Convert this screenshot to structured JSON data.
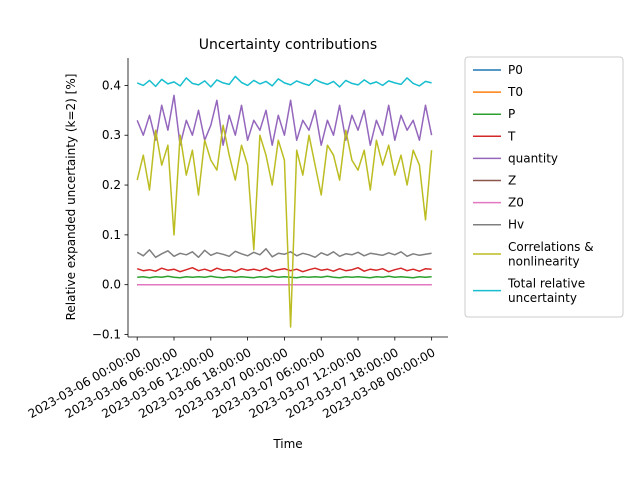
{
  "chart_data": {
    "type": "line",
    "title": "Uncertainty contributions",
    "xlabel": "Time",
    "ylabel": "Relative expanded uncertainty (k=2) [%]",
    "x_range": [
      "2023-03-05 22:30:00",
      "2023-03-08 02:40:00"
    ],
    "ylim": [
      -0.105,
      0.455
    ],
    "yticks": [
      -0.1,
      0.0,
      0.1,
      0.2,
      0.3,
      0.4
    ],
    "ytick_labels": [
      "−0.1",
      "0.0",
      "0.1",
      "0.2",
      "0.3",
      "0.4"
    ],
    "xticks": [
      "2023-03-06 00:00:00",
      "2023-03-06 06:00:00",
      "2023-03-06 12:00:00",
      "2023-03-06 18:00:00",
      "2023-03-07 00:00:00",
      "2023-03-07 06:00:00",
      "2023-03-07 12:00:00",
      "2023-03-07 18:00:00",
      "2023-03-08 00:00:00"
    ],
    "grid": false,
    "legend_placement": "outside upper right",
    "series": [
      {
        "name": "P0",
        "color": "#1f77b4",
        "values": [
          0.0,
          0.0,
          0.0,
          0.0,
          0.0,
          0.0,
          0.0,
          0.0,
          0.0,
          0.0,
          0.0,
          0.0,
          0.0,
          0.0,
          0.0,
          0.0,
          0.0,
          0.0,
          0.0,
          0.0,
          0.0,
          0.0,
          0.0,
          0.0,
          0.0,
          0.0,
          0.0,
          0.0,
          0.0,
          0.0,
          0.0,
          0.0,
          0.0,
          0.0,
          0.0,
          0.0,
          0.0,
          0.0,
          0.0,
          0.0,
          0.0,
          0.0,
          0.0,
          0.0,
          0.0,
          0.0,
          0.0,
          0.0,
          0.0
        ]
      },
      {
        "name": "T0",
        "color": "#ff7f0e",
        "values": [
          0.0,
          0.0,
          0.0,
          0.0,
          0.0,
          0.0,
          0.0,
          0.0,
          0.0,
          0.0,
          0.0,
          0.0,
          0.0,
          0.0,
          0.0,
          0.0,
          0.0,
          0.0,
          0.0,
          0.0,
          0.0,
          0.0,
          0.0,
          0.0,
          0.0,
          0.0,
          0.0,
          0.0,
          0.0,
          0.0,
          0.0,
          0.0,
          0.0,
          0.0,
          0.0,
          0.0,
          0.0,
          0.0,
          0.0,
          0.0,
          0.0,
          0.0,
          0.0,
          0.0,
          0.0,
          0.0,
          0.0,
          0.0,
          0.0
        ]
      },
      {
        "name": "P",
        "color": "#2ca02c",
        "values": [
          0.015,
          0.016,
          0.014,
          0.016,
          0.015,
          0.017,
          0.015,
          0.014,
          0.016,
          0.015,
          0.016,
          0.015,
          0.017,
          0.015,
          0.014,
          0.016,
          0.015,
          0.016,
          0.015,
          0.014,
          0.016,
          0.015,
          0.017,
          0.015,
          0.016,
          0.015,
          0.014,
          0.016,
          0.015,
          0.016,
          0.015,
          0.017,
          0.015,
          0.014,
          0.016,
          0.015,
          0.016,
          0.015,
          0.014,
          0.016,
          0.015,
          0.017,
          0.015,
          0.016,
          0.015,
          0.014,
          0.016,
          0.015,
          0.016
        ]
      },
      {
        "name": "T",
        "color": "#d62728",
        "values": [
          0.032,
          0.028,
          0.03,
          0.027,
          0.033,
          0.029,
          0.031,
          0.026,
          0.03,
          0.034,
          0.028,
          0.031,
          0.027,
          0.033,
          0.029,
          0.03,
          0.026,
          0.032,
          0.029,
          0.031,
          0.028,
          0.033,
          0.027,
          0.03,
          0.032,
          0.028,
          0.031,
          0.026,
          0.03,
          0.033,
          0.029,
          0.031,
          0.027,
          0.032,
          0.028,
          0.03,
          0.034,
          0.027,
          0.031,
          0.029,
          0.032,
          0.026,
          0.03,
          0.033,
          0.028,
          0.031,
          0.027,
          0.032,
          0.031
        ]
      },
      {
        "name": "quantity",
        "color": "#9467bd",
        "values": [
          0.33,
          0.3,
          0.34,
          0.29,
          0.36,
          0.31,
          0.38,
          0.28,
          0.33,
          0.3,
          0.35,
          0.29,
          0.32,
          0.37,
          0.28,
          0.34,
          0.3,
          0.36,
          0.29,
          0.33,
          0.31,
          0.35,
          0.28,
          0.34,
          0.3,
          0.37,
          0.29,
          0.33,
          0.31,
          0.35,
          0.28,
          0.33,
          0.3,
          0.36,
          0.29,
          0.34,
          0.31,
          0.35,
          0.28,
          0.33,
          0.3,
          0.36,
          0.29,
          0.34,
          0.31,
          0.33,
          0.29,
          0.36,
          0.3
        ]
      },
      {
        "name": "Z",
        "color": "#8c564b",
        "values": [
          0.0,
          0.0,
          0.0,
          0.0,
          0.0,
          0.0,
          0.0,
          0.0,
          0.0,
          0.0,
          0.0,
          0.0,
          0.0,
          0.0,
          0.0,
          0.0,
          0.0,
          0.0,
          0.0,
          0.0,
          0.0,
          0.0,
          0.0,
          0.0,
          0.0,
          0.0,
          0.0,
          0.0,
          0.0,
          0.0,
          0.0,
          0.0,
          0.0,
          0.0,
          0.0,
          0.0,
          0.0,
          0.0,
          0.0,
          0.0,
          0.0,
          0.0,
          0.0,
          0.0,
          0.0,
          0.0,
          0.0,
          0.0,
          0.0
        ]
      },
      {
        "name": "Z0",
        "color": "#e377c2",
        "values": [
          0.0,
          0.0,
          0.0,
          0.0,
          0.0,
          0.0,
          0.0,
          0.0,
          0.0,
          0.0,
          0.0,
          0.0,
          0.0,
          0.0,
          0.0,
          0.0,
          0.0,
          0.0,
          0.0,
          0.0,
          0.0,
          0.0,
          0.0,
          0.0,
          0.0,
          0.0,
          0.0,
          0.0,
          0.0,
          0.0,
          0.0,
          0.0,
          0.0,
          0.0,
          0.0,
          0.0,
          0.0,
          0.0,
          0.0,
          0.0,
          0.0,
          0.0,
          0.0,
          0.0,
          0.0,
          0.0,
          0.0,
          0.0,
          0.0
        ]
      },
      {
        "name": "Hv",
        "color": "#7f7f7f",
        "values": [
          0.065,
          0.058,
          0.07,
          0.055,
          0.062,
          0.068,
          0.057,
          0.063,
          0.06,
          0.066,
          0.055,
          0.069,
          0.059,
          0.064,
          0.061,
          0.057,
          0.067,
          0.062,
          0.058,
          0.065,
          0.06,
          0.072,
          0.056,
          0.063,
          0.061,
          0.066,
          0.058,
          0.063,
          0.06,
          0.055,
          0.064,
          0.059,
          0.066,
          0.057,
          0.062,
          0.06,
          0.065,
          0.058,
          0.063,
          0.061,
          0.059,
          0.064,
          0.06,
          0.066,
          0.057,
          0.062,
          0.059,
          0.061,
          0.063
        ]
      },
      {
        "name": "Correlations & nonlinearity",
        "color": "#bcbd22",
        "values": [
          0.21,
          0.26,
          0.19,
          0.31,
          0.24,
          0.28,
          0.1,
          0.3,
          0.22,
          0.27,
          0.18,
          0.29,
          0.25,
          0.23,
          0.32,
          0.26,
          0.21,
          0.28,
          0.24,
          0.07,
          0.3,
          0.26,
          0.2,
          0.29,
          0.25,
          -0.085,
          0.27,
          0.22,
          0.3,
          0.24,
          0.18,
          0.28,
          0.26,
          0.21,
          0.31,
          0.25,
          0.23,
          0.27,
          0.19,
          0.29,
          0.24,
          0.28,
          0.22,
          0.26,
          0.2,
          0.27,
          0.24,
          0.13,
          0.27
        ]
      },
      {
        "name": "Total relative uncertainty",
        "color": "#17becf",
        "values": [
          0.405,
          0.4,
          0.41,
          0.398,
          0.412,
          0.403,
          0.407,
          0.399,
          0.415,
          0.404,
          0.401,
          0.409,
          0.397,
          0.411,
          0.405,
          0.402,
          0.418,
          0.406,
          0.4,
          0.41,
          0.403,
          0.408,
          0.399,
          0.413,
          0.405,
          0.401,
          0.409,
          0.404,
          0.4,
          0.412,
          0.406,
          0.402,
          0.408,
          0.397,
          0.41,
          0.404,
          0.401,
          0.411,
          0.403,
          0.407,
          0.4,
          0.409,
          0.405,
          0.402,
          0.415,
          0.404,
          0.399,
          0.408,
          0.405
        ]
      }
    ]
  }
}
